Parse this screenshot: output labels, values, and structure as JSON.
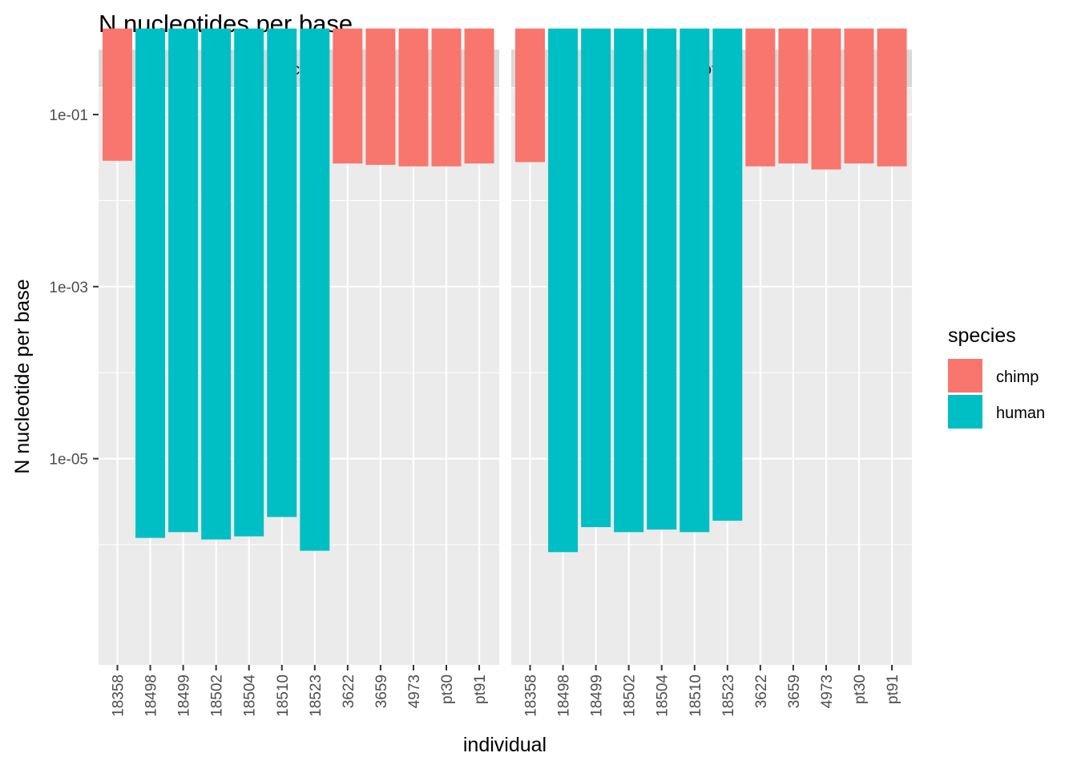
{
  "chart_data": {
    "type": "bar",
    "title": "N nucleotides per base",
    "xlabel": "individual",
    "ylabel": "N nucleotide per base",
    "y_scale": "log10",
    "ylim": [
      3e-07,
      1
    ],
    "yticks": [
      0.1,
      0.001,
      1e-05
    ],
    "ytick_labels": [
      "1e-01",
      "1e-03",
      "1e-05"
    ],
    "grid": true,
    "legend_position": "right",
    "colors": {
      "chimp": "#F8766D",
      "human": "#00BFC4"
    },
    "categories": [
      "18358",
      "18498",
      "18499",
      "18502",
      "18504",
      "18510",
      "18523",
      "3622",
      "3659",
      "4973",
      "pt30",
      "pt91"
    ],
    "species": [
      "chimp",
      "human",
      "human",
      "human",
      "human",
      "human",
      "human",
      "chimp",
      "chimp",
      "chimp",
      "chimp",
      "chimp"
    ],
    "panels": [
      {
        "name": "Nuclear",
        "values": [
          0.029,
          1.2e-06,
          1.4e-06,
          1.15e-06,
          1.25e-06,
          2.1e-06,
          8.5e-07,
          0.027,
          0.026,
          0.025,
          0.025,
          0.027
        ]
      },
      {
        "name": "Total",
        "values": [
          0.028,
          8.2e-07,
          1.6e-06,
          1.4e-06,
          1.5e-06,
          1.4e-06,
          1.9e-06,
          0.025,
          0.027,
          0.023,
          0.027,
          0.025
        ]
      }
    ],
    "legend": {
      "title": "species",
      "entries": [
        {
          "label": "chimp",
          "color": "#F8766D"
        },
        {
          "label": "human",
          "color": "#00BFC4"
        }
      ]
    }
  }
}
